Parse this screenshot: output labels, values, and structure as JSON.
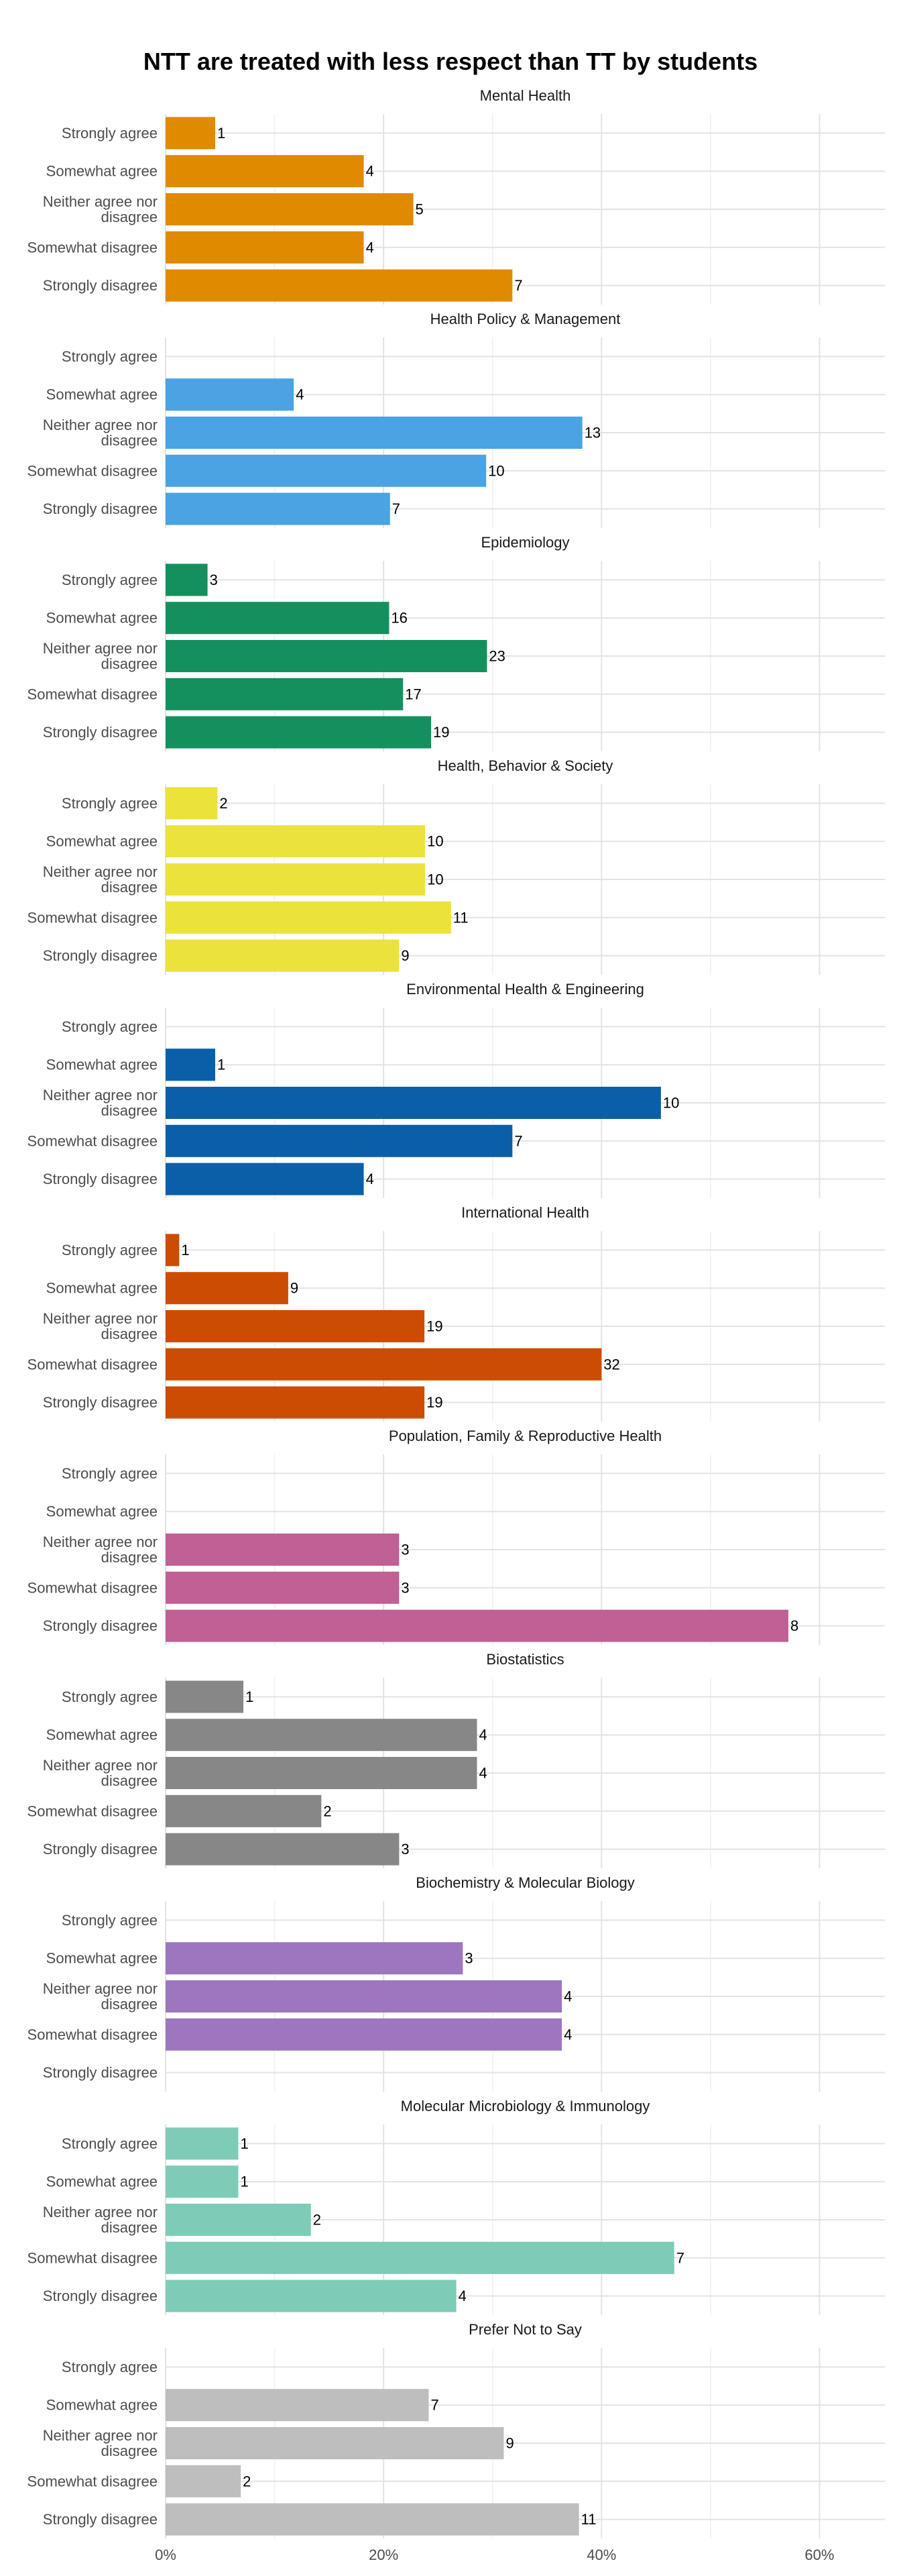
{
  "chart_data": {
    "type": "bar",
    "orientation": "horizontal",
    "title": "NTT are treated with less respect than TT by students",
    "categories": [
      "Strongly agree",
      "Somewhat agree",
      "Neither agree nor disagree",
      "Somewhat disagree",
      "Strongly disagree"
    ],
    "x_ticks": [
      "0%",
      "20%",
      "40%",
      "60%"
    ],
    "xlim": [
      0,
      0.66
    ],
    "value_unit": "share of respondents (fraction); data labels show counts",
    "grid": true,
    "panels": [
      {
        "name": "Mental Health",
        "color": "#E08A00",
        "counts": [
          1,
          4,
          5,
          4,
          7
        ],
        "percent": [
          0.0455,
          0.1818,
          0.2273,
          0.1818,
          0.3182
        ]
      },
      {
        "name": "Health Policy & Management",
        "color": "#4AA3E2",
        "counts": [
          null,
          4,
          13,
          10,
          7
        ],
        "percent": [
          0,
          0.1176,
          0.3824,
          0.2941,
          0.2059
        ]
      },
      {
        "name": "Epidemiology",
        "color": "#13905E",
        "counts": [
          3,
          16,
          23,
          17,
          19
        ],
        "percent": [
          0.0385,
          0.2051,
          0.2949,
          0.2179,
          0.2436
        ]
      },
      {
        "name": "Health, Behavior & Society",
        "color": "#ECE23C",
        "counts": [
          2,
          10,
          10,
          11,
          9
        ],
        "percent": [
          0.0476,
          0.2381,
          0.2381,
          0.2619,
          0.2143
        ]
      },
      {
        "name": "Environmental Health & Engineering",
        "color": "#0A5FA8",
        "counts": [
          null,
          1,
          10,
          7,
          4
        ],
        "percent": [
          0,
          0.0455,
          0.4545,
          0.3182,
          0.1818
        ]
      },
      {
        "name": "International Health",
        "color": "#CC4C02",
        "counts": [
          1,
          9,
          19,
          32,
          19
        ],
        "percent": [
          0.0125,
          0.1125,
          0.2375,
          0.4,
          0.2375
        ]
      },
      {
        "name": "Population, Family & Reproductive Health",
        "color": "#C06094",
        "counts": [
          null,
          null,
          3,
          3,
          8
        ],
        "percent": [
          0,
          0,
          0.2143,
          0.2143,
          0.5714
        ]
      },
      {
        "name": "Biostatistics",
        "color": "#878787",
        "counts": [
          1,
          4,
          4,
          2,
          3
        ],
        "percent": [
          0.0714,
          0.2857,
          0.2857,
          0.1429,
          0.2143
        ]
      },
      {
        "name": "Biochemistry & Molecular Biology",
        "color": "#9C77C0",
        "counts": [
          null,
          3,
          4,
          4,
          null
        ],
        "percent": [
          0,
          0.2727,
          0.3636,
          0.3636,
          0
        ]
      },
      {
        "name": "Molecular Microbiology & Immunology",
        "color": "#7ECBB8",
        "counts": [
          1,
          1,
          2,
          7,
          4
        ],
        "percent": [
          0.0667,
          0.0667,
          0.1333,
          0.4667,
          0.2667
        ]
      },
      {
        "name": "Prefer Not to Say",
        "color": "#BEBEBE",
        "counts": [
          null,
          7,
          9,
          2,
          11
        ],
        "percent": [
          0,
          0.2414,
          0.3103,
          0.069,
          0.3793
        ]
      }
    ]
  }
}
